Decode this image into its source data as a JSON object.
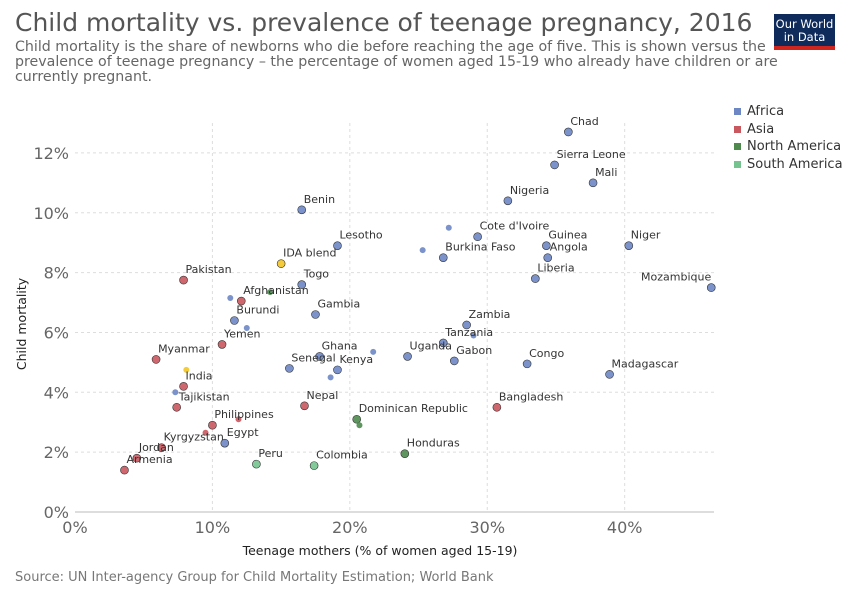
{
  "header": {
    "title": "Child mortality vs. prevalence of teenage pregnancy, 2016",
    "subtitle": "Child mortality is the share of newborns who die before reaching the age of five. This is shown versus the prevalence of teenage pregnancy – the percentage of women aged 15-19 who already have children or are currently pregnant.",
    "logo_line1": "Our World",
    "logo_line2": "in Data"
  },
  "legend": {
    "items": [
      {
        "label": "Africa",
        "color": "#6d87c4"
      },
      {
        "label": "Asia",
        "color": "#c9585e"
      },
      {
        "label": "North America",
        "color": "#4e8a4e"
      },
      {
        "label": "South America",
        "color": "#75c490"
      }
    ]
  },
  "source": "Source: UN Inter-agency Group for Child Mortality Estimation; World Bank",
  "chart_data": {
    "type": "scatter",
    "title": "Child mortality vs. prevalence of teenage pregnancy, 2016",
    "xlabel": "Teenage mothers (% of women aged 15-19)",
    "ylabel": "Child mortality",
    "xlim": [
      0,
      46.5
    ],
    "ylim": [
      0,
      13
    ],
    "x_ticks": [
      "0%",
      "10%",
      "20%",
      "30%",
      "40%"
    ],
    "y_ticks": [
      "0%",
      "2%",
      "4%",
      "6%",
      "8%",
      "10%",
      "12%"
    ],
    "grid": true,
    "legend_position": "top-right",
    "region_colors": {
      "Africa": "#6d87c4",
      "Asia": "#c9585e",
      "North America": "#4e8a4e",
      "South America": "#75c490",
      "Other": "#f2c526"
    },
    "points": [
      {
        "label": "Chad",
        "x": 35.9,
        "y": 12.7,
        "region": "Africa",
        "anchor": "start"
      },
      {
        "label": "Sierra Leone",
        "x": 34.9,
        "y": 11.6,
        "region": "Africa",
        "anchor": "start"
      },
      {
        "label": "Mali",
        "x": 37.7,
        "y": 11.0,
        "region": "Africa",
        "anchor": "start"
      },
      {
        "label": "Nigeria",
        "x": 31.5,
        "y": 10.4,
        "region": "Africa",
        "anchor": "start"
      },
      {
        "label": "Benin",
        "x": 16.5,
        "y": 10.1,
        "region": "Africa",
        "anchor": "start"
      },
      {
        "label": "Cote d'Ivoire",
        "x": 29.3,
        "y": 9.2,
        "region": "Africa",
        "anchor": "start"
      },
      {
        "label": "Guinea",
        "x": 34.3,
        "y": 8.9,
        "region": "Africa",
        "anchor": "start"
      },
      {
        "label": "Niger",
        "x": 40.3,
        "y": 8.9,
        "region": "Africa",
        "anchor": "start"
      },
      {
        "label": "Lesotho",
        "x": 19.1,
        "y": 8.9,
        "region": "Africa",
        "anchor": "start"
      },
      {
        "label": "Burkina Faso",
        "x": 26.8,
        "y": 8.5,
        "region": "Africa",
        "anchor": "start"
      },
      {
        "label": "Angola",
        "x": 34.4,
        "y": 8.5,
        "region": "Africa",
        "anchor": "start"
      },
      {
        "label": "Liberia",
        "x": 33.5,
        "y": 7.8,
        "region": "Africa",
        "anchor": "start"
      },
      {
        "label": "Mozambique",
        "x": 46.3,
        "y": 7.5,
        "region": "Africa",
        "anchor": "end"
      },
      {
        "label": "Togo",
        "x": 16.5,
        "y": 7.6,
        "region": "Africa",
        "anchor": "start"
      },
      {
        "label": "Gambia",
        "x": 17.5,
        "y": 6.6,
        "region": "Africa",
        "anchor": "start"
      },
      {
        "label": "Burundi",
        "x": 11.6,
        "y": 6.4,
        "region": "Africa",
        "anchor": "start"
      },
      {
        "label": "Zambia",
        "x": 28.5,
        "y": 6.25,
        "region": "Africa",
        "anchor": "start"
      },
      {
        "label": "Tanzania",
        "x": 26.8,
        "y": 5.65,
        "region": "Africa",
        "anchor": "start"
      },
      {
        "label": "Ghana",
        "x": 17.8,
        "y": 5.2,
        "region": "Africa",
        "anchor": "start"
      },
      {
        "label": "Uganda",
        "x": 24.2,
        "y": 5.2,
        "region": "Africa",
        "anchor": "start"
      },
      {
        "label": "Gabon",
        "x": 27.6,
        "y": 5.05,
        "region": "Africa",
        "anchor": "start"
      },
      {
        "label": "Congo",
        "x": 32.9,
        "y": 4.95,
        "region": "Africa",
        "anchor": "start"
      },
      {
        "label": "Senegal",
        "x": 15.6,
        "y": 4.8,
        "region": "Africa",
        "anchor": "start"
      },
      {
        "label": "Kenya",
        "x": 19.1,
        "y": 4.75,
        "region": "Africa",
        "anchor": "start"
      },
      {
        "label": "Madagascar",
        "x": 38.9,
        "y": 4.6,
        "region": "Africa",
        "anchor": "start"
      },
      {
        "label": "Egypt",
        "x": 10.9,
        "y": 2.3,
        "region": "Africa",
        "anchor": "start"
      },
      {
        "label": "",
        "x": 27.2,
        "y": 9.5,
        "region": "Africa",
        "small": true
      },
      {
        "label": "",
        "x": 25.3,
        "y": 8.75,
        "region": "Africa",
        "small": true
      },
      {
        "label": "",
        "x": 11.3,
        "y": 7.15,
        "region": "Africa",
        "small": true
      },
      {
        "label": "",
        "x": 12.5,
        "y": 6.15,
        "region": "Africa",
        "small": true
      },
      {
        "label": "",
        "x": 21.7,
        "y": 5.35,
        "region": "Africa",
        "small": true
      },
      {
        "label": "",
        "x": 29.0,
        "y": 5.9,
        "region": "Africa",
        "small": true
      },
      {
        "label": "",
        "x": 18.6,
        "y": 4.5,
        "region": "Africa",
        "small": true
      },
      {
        "label": "",
        "x": 7.3,
        "y": 4.0,
        "region": "Africa",
        "small": true
      },
      {
        "label": "Pakistan",
        "x": 7.9,
        "y": 7.75,
        "region": "Asia",
        "anchor": "start"
      },
      {
        "label": "Afghanistan",
        "x": 12.1,
        "y": 7.05,
        "region": "Asia",
        "anchor": "start"
      },
      {
        "label": "Yemen",
        "x": 10.7,
        "y": 5.6,
        "region": "Asia",
        "anchor": "start"
      },
      {
        "label": "Myanmar",
        "x": 5.9,
        "y": 5.1,
        "region": "Asia",
        "anchor": "start"
      },
      {
        "label": "India",
        "x": 7.9,
        "y": 4.2,
        "region": "Asia",
        "anchor": "start"
      },
      {
        "label": "Nepal",
        "x": 16.7,
        "y": 3.55,
        "region": "Asia",
        "anchor": "start"
      },
      {
        "label": "Bangladesh",
        "x": 30.7,
        "y": 3.5,
        "region": "Asia",
        "anchor": "start"
      },
      {
        "label": "Tajikistan",
        "x": 7.4,
        "y": 3.5,
        "region": "Asia",
        "anchor": "start"
      },
      {
        "label": "Philippines",
        "x": 10.0,
        "y": 2.9,
        "region": "Asia",
        "anchor": "start"
      },
      {
        "label": "Kyrgyzstan",
        "x": 6.3,
        "y": 2.15,
        "region": "Asia",
        "anchor": "start"
      },
      {
        "label": "Jordan",
        "x": 4.5,
        "y": 1.8,
        "region": "Asia",
        "anchor": "start"
      },
      {
        "label": "Armenia",
        "x": 3.6,
        "y": 1.4,
        "region": "Asia",
        "anchor": "start"
      },
      {
        "label": "",
        "x": 11.9,
        "y": 3.1,
        "region": "Asia",
        "small": true
      },
      {
        "label": "",
        "x": 9.5,
        "y": 2.65,
        "region": "Asia",
        "small": true
      },
      {
        "label": "Dominican Republic",
        "x": 20.5,
        "y": 3.1,
        "region": "North America",
        "anchor": "start"
      },
      {
        "label": "Honduras",
        "x": 24.0,
        "y": 1.95,
        "region": "North America",
        "anchor": "start"
      },
      {
        "label": "",
        "x": 14.2,
        "y": 7.35,
        "region": "North America",
        "small": true
      },
      {
        "label": "",
        "x": 20.7,
        "y": 2.9,
        "region": "North America",
        "small": true
      },
      {
        "label": "Peru",
        "x": 13.2,
        "y": 1.6,
        "region": "South America",
        "anchor": "start"
      },
      {
        "label": "Colombia",
        "x": 17.4,
        "y": 1.55,
        "region": "South America",
        "anchor": "start"
      },
      {
        "label": "IDA blend",
        "x": 15.0,
        "y": 8.3,
        "region": "Other",
        "anchor": "start"
      },
      {
        "label": "",
        "x": 8.1,
        "y": 4.75,
        "region": "Other",
        "small": true
      }
    ]
  }
}
